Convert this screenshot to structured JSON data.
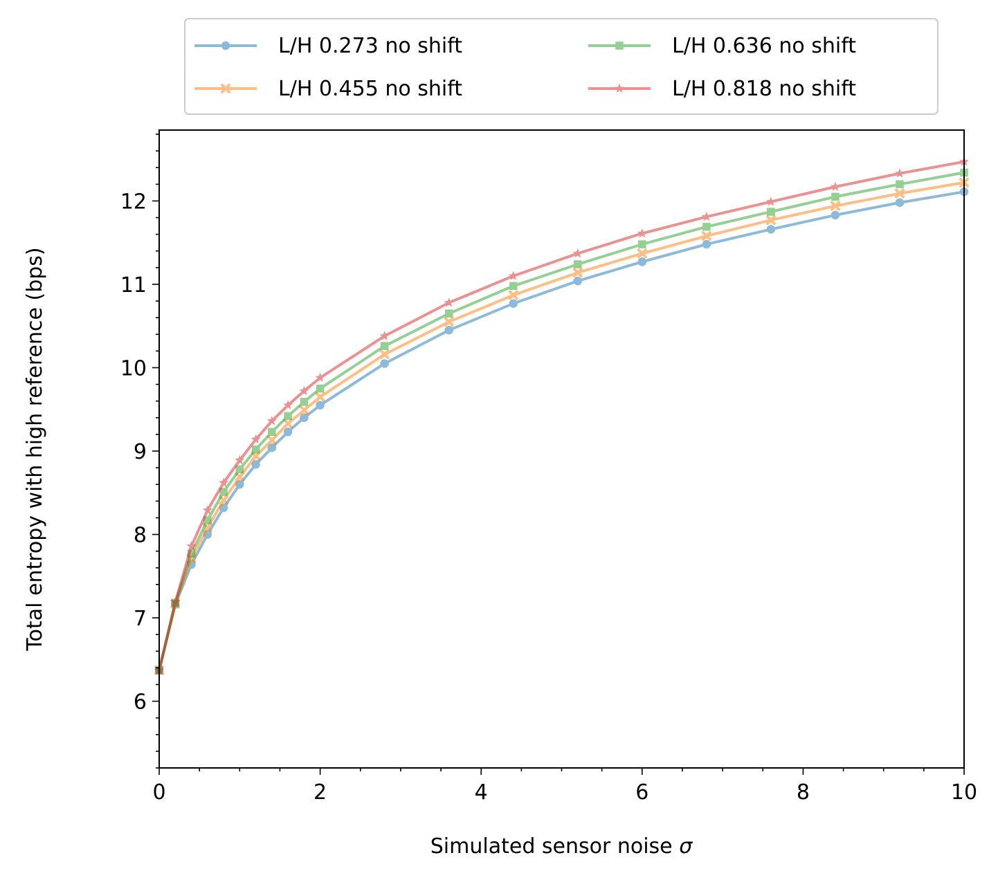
{
  "chart_data": {
    "type": "line",
    "title": "",
    "xlabel": "Simulated sensor noise",
    "xlabel_symbol": "σ",
    "ylabel": "Total entropy with high reference (bps)",
    "xlim": [
      0,
      10
    ],
    "ylim": [
      5.2,
      12.85
    ],
    "x_ticks": [
      "0",
      "2",
      "4",
      "6",
      "8",
      "10"
    ],
    "y_ticks": [
      "6",
      "7",
      "8",
      "9",
      "10",
      "11",
      "12"
    ],
    "grid": false,
    "legend_position": "top, above plot, 2 columns",
    "x": [
      0,
      0.2,
      0.4,
      0.6,
      0.8,
      1.0,
      1.2,
      1.4,
      1.6,
      1.8,
      2.0,
      2.8,
      3.6,
      4.4,
      5.2,
      6.0,
      6.8,
      7.6,
      8.4,
      9.2,
      10.0
    ],
    "series": [
      {
        "name": "L/H 0.273 no shift",
        "color": "#1f77b4",
        "marker": "circle",
        "values": [
          6.37,
          7.16,
          7.64,
          8.0,
          8.32,
          8.6,
          8.84,
          9.04,
          9.23,
          9.4,
          9.55,
          10.05,
          10.45,
          10.77,
          11.04,
          11.27,
          11.48,
          11.66,
          11.83,
          11.98,
          12.11
        ]
      },
      {
        "name": "L/H 0.455 no shift",
        "color": "#ff7f0e",
        "marker": "x",
        "values": [
          6.37,
          7.17,
          7.71,
          8.08,
          8.41,
          8.69,
          8.94,
          9.13,
          9.33,
          9.49,
          9.65,
          10.16,
          10.55,
          10.87,
          11.14,
          11.37,
          11.58,
          11.77,
          11.94,
          12.09,
          12.22
        ]
      },
      {
        "name": "L/H 0.636 no shift",
        "color": "#2ca02c",
        "marker": "square",
        "values": [
          6.37,
          7.18,
          7.77,
          8.17,
          8.51,
          8.78,
          9.02,
          9.23,
          9.42,
          9.59,
          9.75,
          10.26,
          10.65,
          10.98,
          11.24,
          11.48,
          11.69,
          11.87,
          12.05,
          12.2,
          12.34
        ]
      },
      {
        "name": "L/H 0.818 no shift",
        "color": "#d62728",
        "marker": "star",
        "values": [
          6.37,
          7.19,
          7.86,
          8.29,
          8.62,
          8.89,
          9.14,
          9.36,
          9.55,
          9.72,
          9.88,
          10.38,
          10.78,
          11.1,
          11.37,
          11.61,
          11.81,
          11.99,
          12.17,
          12.33,
          12.47
        ]
      }
    ]
  }
}
